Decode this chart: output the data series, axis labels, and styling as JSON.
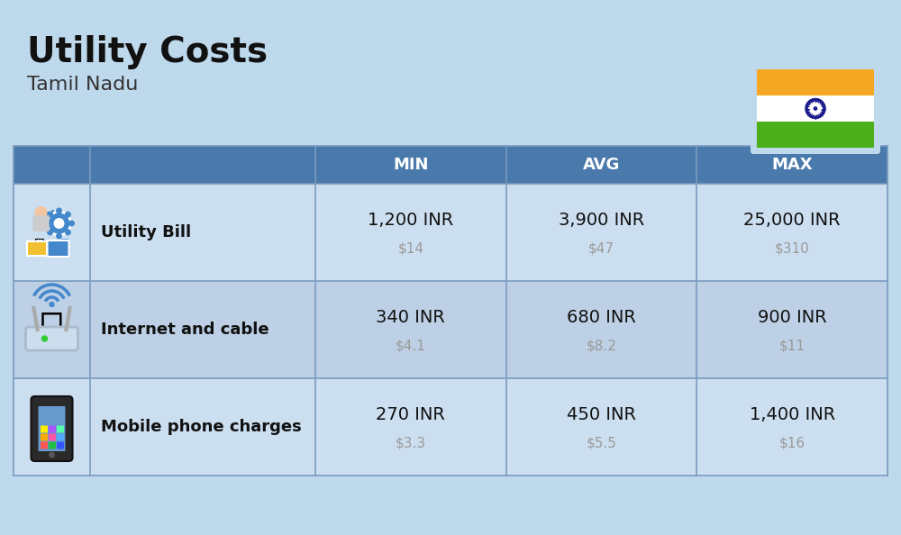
{
  "title": "Utility Costs",
  "subtitle": "Tamil Nadu",
  "background_color": "#bed8ec",
  "header_color": "#4a7aab",
  "header_text_color": "#ffffff",
  "row_color_even": "#ccdff0",
  "row_color_odd": "#bdd0e5",
  "col_headers": [
    "MIN",
    "AVG",
    "MAX"
  ],
  "rows": [
    {
      "label": "Utility Bill",
      "min_inr": "1,200 INR",
      "min_usd": "$14",
      "avg_inr": "3,900 INR",
      "avg_usd": "$47",
      "max_inr": "25,000 INR",
      "max_usd": "$310",
      "icon": "utility"
    },
    {
      "label": "Internet and cable",
      "min_inr": "340 INR",
      "min_usd": "$4.1",
      "avg_inr": "680 INR",
      "avg_usd": "$8.2",
      "max_inr": "900 INR",
      "max_usd": "$11",
      "icon": "internet"
    },
    {
      "label": "Mobile phone charges",
      "min_inr": "270 INR",
      "min_usd": "$3.3",
      "avg_inr": "450 INR",
      "avg_usd": "$5.5",
      "max_inr": "1,400 INR",
      "max_usd": "$16",
      "icon": "mobile"
    }
  ],
  "flag_colors": {
    "top": "#f5a623",
    "middle": "#FFFFFF",
    "bottom": "#4caf1a",
    "chakra": "#1a1a8c"
  },
  "title_fontsize": 28,
  "subtitle_fontsize": 16,
  "label_fontsize": 13,
  "value_fontsize": 14,
  "usd_fontsize": 11,
  "header_fontsize": 13
}
